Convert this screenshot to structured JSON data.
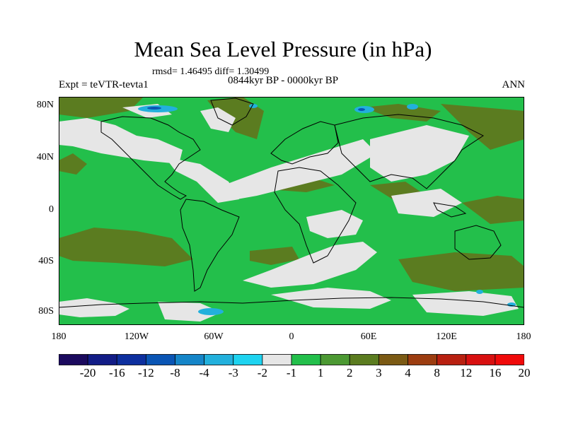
{
  "header": {
    "title": "Mean Sea Level Pressure (in hPa)",
    "stats": "rmsd= 1.46495 diff= 1.30499",
    "period": "0844kyr BP - 0000kyr BP",
    "expt": "Expt = teVTR-tevta1",
    "season": "ANN"
  },
  "axes": {
    "y_labels": [
      "80N",
      "40N",
      "0",
      "40S",
      "80S"
    ],
    "x_labels": [
      "180",
      "120W",
      "60W",
      "0",
      "60E",
      "120E",
      "180"
    ]
  },
  "colorbar": {
    "labels": [
      "-20",
      "-16",
      "-12",
      "-8",
      "-4",
      "-3",
      "-2",
      "-1",
      "1",
      "2",
      "3",
      "4",
      "8",
      "12",
      "16",
      "20"
    ],
    "colors": [
      "#1b0a5e",
      "#121c86",
      "#0d2f9e",
      "#0a55b4",
      "#1585c8",
      "#22b0dc",
      "#1ed3f0",
      "#e6e6e6",
      "#23bf4b",
      "#4c9933",
      "#5b7c20",
      "#7b5a14",
      "#9c3d10",
      "#b82010",
      "#d81010",
      "#f00a0a"
    ]
  },
  "map_colors": {
    "ocean_base": "#23bf4b",
    "near_zero": "#e6e6e6",
    "moderate": "#5b7c20",
    "light_blue": "#22b0dc",
    "dark_blue": "#0a55b4",
    "coast": "#000000",
    "olive": "#4c9933"
  }
}
